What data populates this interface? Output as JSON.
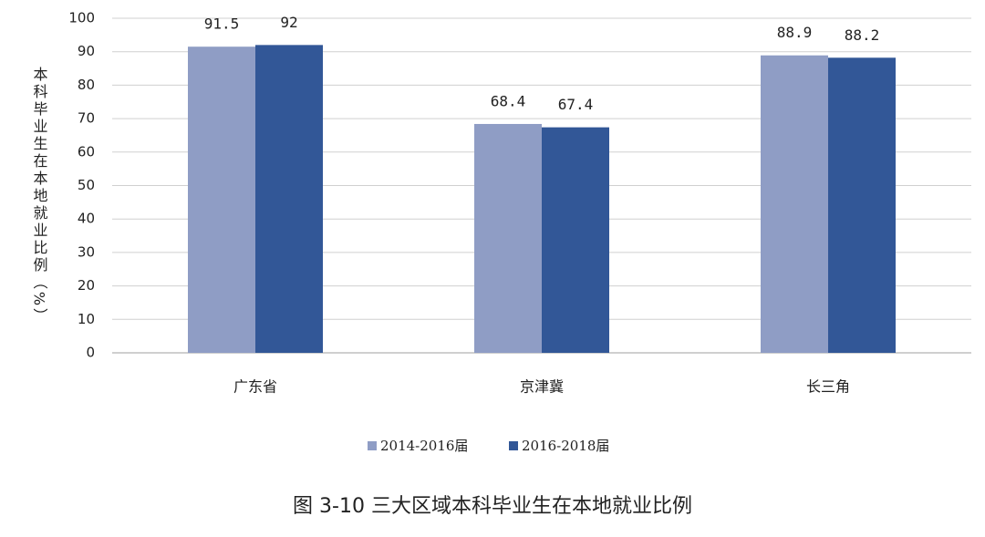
{
  "chart_data": {
    "type": "bar",
    "caption": "图 3-10 三大区域本科毕业生在本地就业比例",
    "y_label": "本科毕业生在本地就业比例（%）",
    "categories": [
      "广东省",
      "京津冀",
      "长三角"
    ],
    "series": [
      {
        "name": "2014-2016届",
        "color": "#8f9dc5",
        "values": [
          91.5,
          68.4,
          88.9
        ]
      },
      {
        "name": "2016-2018届",
        "color": "#325797",
        "values": [
          92,
          67.4,
          88.2
        ]
      }
    ],
    "ylim": [
      0,
      100
    ],
    "yticks": [
      0,
      10,
      20,
      30,
      40,
      50,
      60,
      70,
      80,
      90,
      100
    ],
    "grid": true,
    "legend": "bottom"
  }
}
